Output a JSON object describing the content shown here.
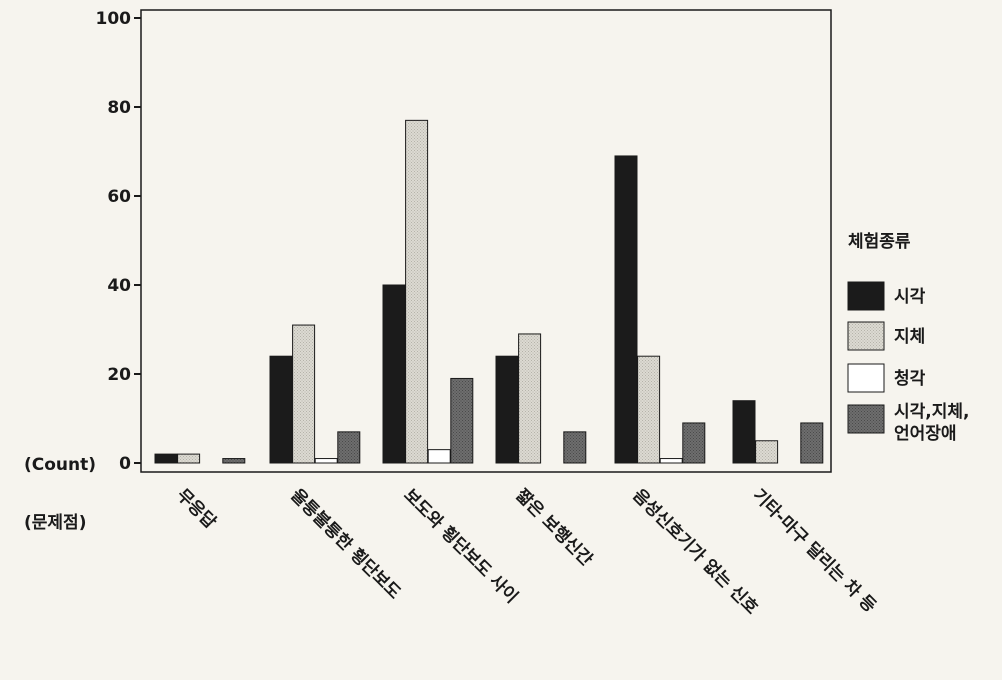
{
  "chart_data": {
    "type": "bar",
    "y_axis_label": "(Count)",
    "x_axis_label": "(문제점)",
    "ylim": [
      0,
      100
    ],
    "yticks": [
      0,
      20,
      40,
      60,
      80,
      100
    ],
    "categories": [
      "무응답",
      "울퉁불퉁한 횡단보도",
      "보도와 횡단보도 사이",
      "짧은 보행신간",
      "음성신호기가 없는 신호",
      "기타-마구 달리는 차 등"
    ],
    "legend": {
      "title": "체험종류",
      "placement": "right"
    },
    "series": [
      {
        "name": "시각",
        "color": "#1b1b1b",
        "values": [
          2,
          24,
          40,
          24,
          69,
          14
        ]
      },
      {
        "name": "지체",
        "color": "#d7d5cd",
        "values": [
          2,
          31,
          77,
          29,
          24,
          5
        ]
      },
      {
        "name": "청각",
        "color": "#ffffff",
        "values": [
          0,
          1,
          3,
          0,
          1,
          0
        ]
      },
      {
        "name": "시각,지체,언어장애",
        "label_lines": [
          "시각,지체,",
          "언어장애"
        ],
        "color": "#6b6b6b",
        "values": [
          1,
          7,
          19,
          7,
          9,
          9
        ]
      }
    ],
    "grid": false
  }
}
